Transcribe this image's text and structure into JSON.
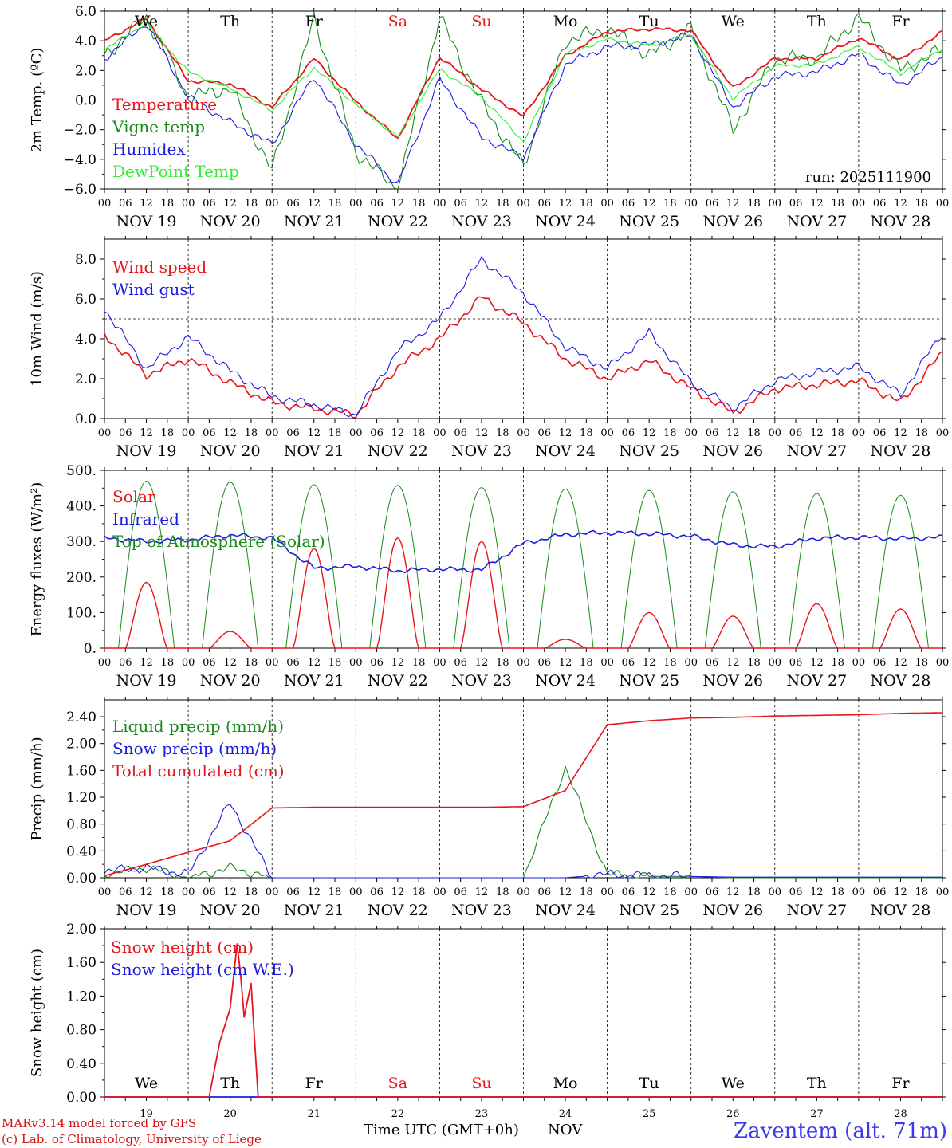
{
  "colors": {
    "red": "#e8141b",
    "green": "#1a8a1a",
    "blue": "#1c1ce0",
    "lightgreen": "#33ee33",
    "black": "#000000",
    "footer_red": "#d41111",
    "station_blue": "#3a3aee"
  },
  "chart_data": [
    {
      "type": "line",
      "ylabel": "2m Temp. (ºC)",
      "ylim": [
        -6,
        6
      ],
      "yticks": [
        "6.0",
        "4.0",
        "2.0",
        "0.0",
        "−2.0",
        "−4.0",
        "−6.0"
      ],
      "ytick_values": [
        6,
        4,
        2,
        0,
        -2,
        -4,
        -6
      ],
      "ref_line": 0,
      "top_day_labels": [
        "We",
        "Th",
        "Fr",
        "Sa",
        "Su",
        "Mo",
        "Tu",
        "We",
        "Th",
        "Fr"
      ],
      "run_label": "run: 2025111900",
      "x": [
        0,
        12,
        24,
        36,
        48,
        60,
        72,
        84,
        96,
        108,
        120,
        132,
        144,
        156,
        168,
        180,
        192,
        204,
        216,
        228,
        240
      ],
      "series": [
        {
          "name": "Temperature",
          "color": "red",
          "values": [
            4.0,
            5.5,
            1.3,
            1.1,
            -0.5,
            2.8,
            -0.1,
            -2.6,
            2.9,
            0.7,
            -1.1,
            3.0,
            4.6,
            4.8,
            4.7,
            0.8,
            2.8,
            2.8,
            4.2,
            2.7,
            4.6
          ]
        },
        {
          "name": "Vigne temp",
          "color": "green",
          "values": [
            3.0,
            5.6,
            0.2,
            0.8,
            -4.8,
            5.5,
            -3.5,
            -6.0,
            5.6,
            -0.2,
            -4.5,
            4.0,
            4.8,
            3.0,
            4.8,
            -2.0,
            2.8,
            2.8,
            5.6,
            2.0,
            3.4
          ]
        },
        {
          "name": "Humidex",
          "color": "blue",
          "values": [
            2.8,
            5.2,
            0.2,
            -1.5,
            -3.0,
            1.6,
            -3.0,
            -5.7,
            1.4,
            -2.5,
            -3.9,
            2.4,
            3.6,
            3.7,
            4.4,
            -0.5,
            1.6,
            1.9,
            3.1,
            1.0,
            2.9
          ]
        },
        {
          "name": "DewPoint Temp",
          "color": "lightgreen",
          "values": [
            3.4,
            5.2,
            1.9,
            0.8,
            -0.7,
            2.2,
            -0.3,
            -2.5,
            2.1,
            0.2,
            -2.8,
            3.1,
            4.1,
            3.7,
            4.4,
            0.1,
            2.3,
            2.4,
            3.6,
            1.8,
            3.5
          ]
        }
      ]
    },
    {
      "type": "line",
      "ylabel": "10m Wind (m/s)",
      "ylim": [
        0,
        9
      ],
      "yticks": [
        "8.0",
        "6.0",
        "4.0",
        "2.0",
        "0.0"
      ],
      "ytick_values": [
        8,
        6,
        4,
        2,
        0
      ],
      "ref_line": 5,
      "x": [
        0,
        12,
        24,
        36,
        48,
        60,
        72,
        84,
        96,
        108,
        120,
        132,
        144,
        156,
        168,
        180,
        192,
        204,
        216,
        228,
        240
      ],
      "series": [
        {
          "name": "Wind speed",
          "color": "red",
          "values": [
            4.2,
            2.2,
            3.0,
            1.8,
            0.8,
            0.5,
            0.2,
            2.6,
            4.0,
            6.1,
            4.8,
            3.0,
            2.0,
            2.9,
            1.5,
            0.3,
            1.5,
            1.7,
            1.9,
            0.8,
            3.3
          ]
        },
        {
          "name": "Wind gust",
          "color": "blue",
          "values": [
            5.5,
            2.5,
            4.1,
            2.4,
            1.1,
            0.7,
            0.2,
            3.4,
            5.0,
            8.0,
            6.3,
            3.6,
            2.5,
            4.3,
            1.8,
            0.5,
            1.9,
            2.3,
            2.6,
            1.2,
            4.3
          ]
        }
      ]
    },
    {
      "type": "line",
      "ylabel": "Energy fluxes (W/m²)",
      "ylim": [
        0,
        500
      ],
      "yticks": [
        "500.",
        "400.",
        "300.",
        "200.",
        "100.",
        "0."
      ],
      "ytick_values": [
        500,
        400,
        300,
        200,
        100,
        0
      ],
      "daily_noon_peaks": {
        "solar": [
          185,
          47,
          280,
          310,
          300,
          25,
          100,
          90,
          125,
          110
        ],
        "top_of_atmosphere": [
          470,
          467,
          460,
          458,
          452,
          448,
          444,
          440,
          435,
          430
        ]
      },
      "x": [
        0,
        12,
        24,
        36,
        48,
        60,
        72,
        84,
        96,
        108,
        120,
        132,
        144,
        156,
        168,
        180,
        192,
        204,
        216,
        228,
        240
      ],
      "series": [
        {
          "name": "Solar",
          "color": "red"
        },
        {
          "name": "Infrared",
          "color": "blue",
          "values": [
            310,
            300,
            305,
            318,
            310,
            225,
            230,
            218,
            222,
            220,
            295,
            320,
            325,
            322,
            315,
            290,
            285,
            310,
            312,
            308,
            312
          ]
        },
        {
          "name": "Top of Atmosphere (Solar)",
          "color": "green"
        }
      ]
    },
    {
      "type": "line",
      "ylabel": "Precip (mm/h)",
      "ylim": [
        0,
        2.65
      ],
      "yticks": [
        "2.40",
        "2.00",
        "1.60",
        "1.20",
        "0.80",
        "0.40",
        "0.00"
      ],
      "ytick_values": [
        2.4,
        2.0,
        1.6,
        1.2,
        0.8,
        0.4,
        0.0
      ],
      "x": [
        0,
        12,
        24,
        36,
        48,
        60,
        72,
        84,
        96,
        108,
        120,
        132,
        144,
        156,
        168,
        180,
        192,
        204,
        216,
        228,
        240
      ],
      "series": [
        {
          "name": "Liquid precip (mm/h)",
          "color": "green",
          "values": [
            0.05,
            0.15,
            0.0,
            0.15,
            0.0,
            0.0,
            0.0,
            0.0,
            0.0,
            0.0,
            0.0,
            1.65,
            0.05,
            0.02,
            0.02,
            0.0,
            0.0,
            0.0,
            0.0,
            0.0,
            0.0
          ]
        },
        {
          "name": "Snow precip (mm/h)",
          "color": "blue",
          "values": [
            0.1,
            0.15,
            0.05,
            1.12,
            0.0,
            0.0,
            0.0,
            0.0,
            0.0,
            0.0,
            0.0,
            0.0,
            0.05,
            0.03,
            0.02,
            0.01,
            0.01,
            0.01,
            0.01,
            0.01,
            0.01
          ]
        },
        {
          "name": "Total cumulated (cm)",
          "color": "red",
          "values": [
            0.03,
            0.2,
            0.38,
            0.55,
            1.04,
            1.05,
            1.05,
            1.05,
            1.05,
            1.05,
            1.06,
            1.3,
            2.28,
            2.34,
            2.38,
            2.39,
            2.41,
            2.42,
            2.43,
            2.45,
            2.46
          ]
        }
      ]
    },
    {
      "type": "line",
      "ylabel": "Snow height (cm)",
      "ylim": [
        0,
        2
      ],
      "yticks": [
        "2.00",
        "1.60",
        "1.20",
        "0.80",
        "0.40",
        "0.00"
      ],
      "ytick_values": [
        2.0,
        1.6,
        1.2,
        0.8,
        0.4,
        0.0
      ],
      "day_labels": [
        "We",
        "Th",
        "Fr",
        "Sa",
        "Su",
        "Mo",
        "Tu",
        "We",
        "Th",
        "Fr"
      ],
      "day_numbers": [
        "19",
        "20",
        "21",
        "22",
        "23",
        "24",
        "25",
        "26",
        "27",
        "28"
      ],
      "x": [
        0,
        30,
        33,
        36,
        38,
        39,
        40,
        42,
        44,
        240
      ],
      "series": [
        {
          "name": "Snow height (cm)",
          "color": "red",
          "values": [
            0.0,
            0.0,
            0.65,
            1.05,
            1.82,
            1.45,
            0.95,
            1.35,
            0.0,
            0.0
          ]
        },
        {
          "name": "Snow height (cm W.E.)",
          "color": "blue",
          "values": [
            0.0,
            0.0,
            0.0,
            0.0,
            0.0,
            0.0,
            0.0,
            0.0,
            0.0,
            0.0
          ]
        }
      ]
    }
  ],
  "x_axis": {
    "hour_labels": [
      "00",
      "06",
      "12",
      "18"
    ],
    "final_hour": "00",
    "date_labels": [
      "NOV 19",
      "NOV 20",
      "NOV 21",
      "NOV 22",
      "NOV 23",
      "NOV 24",
      "NOV 25",
      "NOV 26",
      "NOV 27",
      "NOV 28"
    ],
    "bottom_title": "Time UTC (GMT+0h)",
    "bottom_month": "NOV",
    "weekend_day_indices": [
      3,
      4
    ]
  },
  "footer": {
    "model": "MARv3.14 model forced by GFS",
    "credit": "(c) Lab. of Climatology, University of Liege",
    "station": "Zaventem (alt. 71m)"
  }
}
